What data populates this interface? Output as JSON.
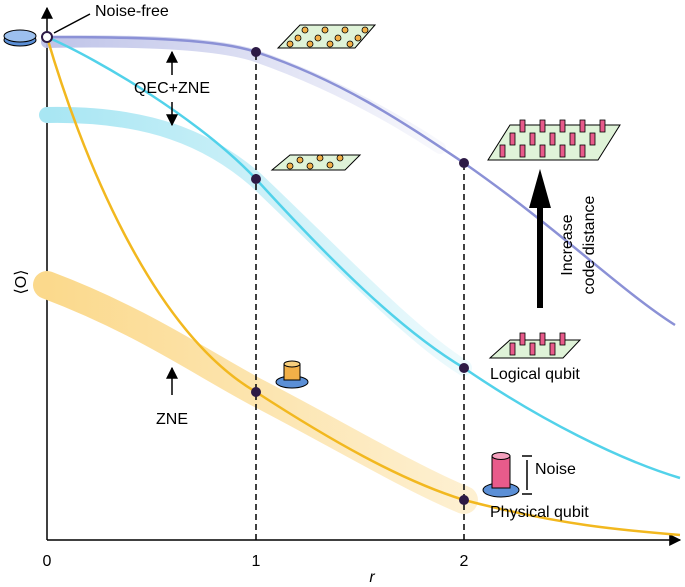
{
  "labels": {
    "noise_free": "Noise-free",
    "qec_zne": "QEC+ZNE",
    "zne": "ZNE",
    "logical_qubit": "Logical qubit",
    "physical_qubit": "Physical qubit",
    "noise": "Noise",
    "increase": [
      "Increase",
      "code distance"
    ]
  },
  "axes": {
    "x_label": "r",
    "y_label": "⟨O⟩",
    "x_ticks": [
      "0",
      "1",
      "2"
    ]
  }
}
